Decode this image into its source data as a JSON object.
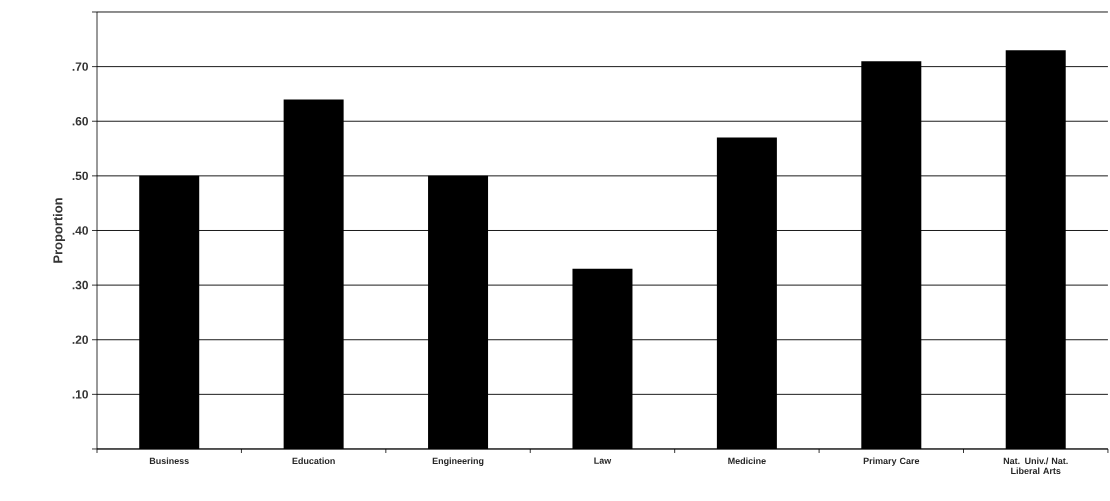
{
  "chart_data": {
    "type": "bar",
    "ylabel": "Proportion",
    "categories": [
      "Business",
      "Education",
      "Engineering",
      "Law",
      "Medicine",
      "Primary Care",
      "Nat. Univ./ Nat. Liberal Arts"
    ],
    "values": [
      0.5,
      0.64,
      0.5,
      0.33,
      0.57,
      0.71,
      0.73
    ],
    "color": "#000000",
    "ylim": [
      0,
      0.8
    ],
    "yticks": [
      {
        "value": 0,
        "label": null
      },
      {
        "value": 0.1,
        "label": ".10"
      },
      {
        "value": 0.2,
        "label": ".20"
      },
      {
        "value": 0.3,
        "label": ".30"
      },
      {
        "value": 0.4,
        "label": ".40"
      },
      {
        "value": 0.5,
        "label": ".50"
      },
      {
        "value": 0.6,
        "label": ".60"
      },
      {
        "value": 0.7,
        "label": ".70"
      },
      {
        "value": 0.8,
        "label": null
      }
    ],
    "grid": "y"
  }
}
